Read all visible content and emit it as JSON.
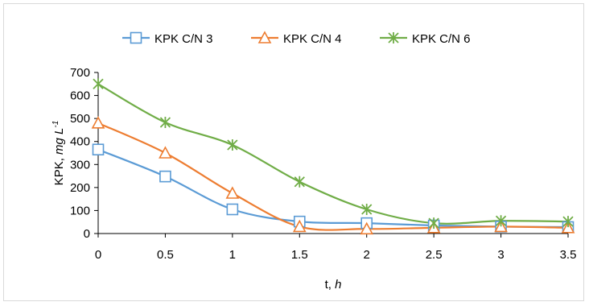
{
  "chart_data": {
    "type": "line",
    "x": [
      0,
      0.5,
      1,
      1.5,
      2,
      2.5,
      3,
      3.5
    ],
    "series": [
      {
        "name": "KPK C/N 3",
        "values": [
          365,
          248,
          105,
          52,
          45,
          35,
          30,
          28
        ],
        "color": "#5b9bd5",
        "marker": "square"
      },
      {
        "name": "KPK C/N 4",
        "values": [
          480,
          350,
          175,
          30,
          20,
          25,
          30,
          25
        ],
        "color": "#ed7d31",
        "marker": "triangle"
      },
      {
        "name": "KPK C/N 6",
        "values": [
          650,
          483,
          385,
          225,
          105,
          45,
          55,
          52
        ],
        "color": "#70ad47",
        "marker": "x-star"
      }
    ],
    "xticks": [
      "0",
      "0.5",
      "1",
      "1.5",
      "2",
      "2.5",
      "3",
      "3.5"
    ],
    "yticks": [
      "0",
      "100",
      "200",
      "300",
      "400",
      "500",
      "600",
      "700"
    ],
    "xlim": [
      0,
      3.5
    ],
    "ylim": [
      0,
      700
    ],
    "xlabel": {
      "main": "t, ",
      "italic": "h"
    },
    "ylabel": {
      "main": "KPK, ",
      "italic": "mg L",
      "sup": "-1"
    },
    "legend_position": "top",
    "grid": false,
    "smooth": true
  }
}
